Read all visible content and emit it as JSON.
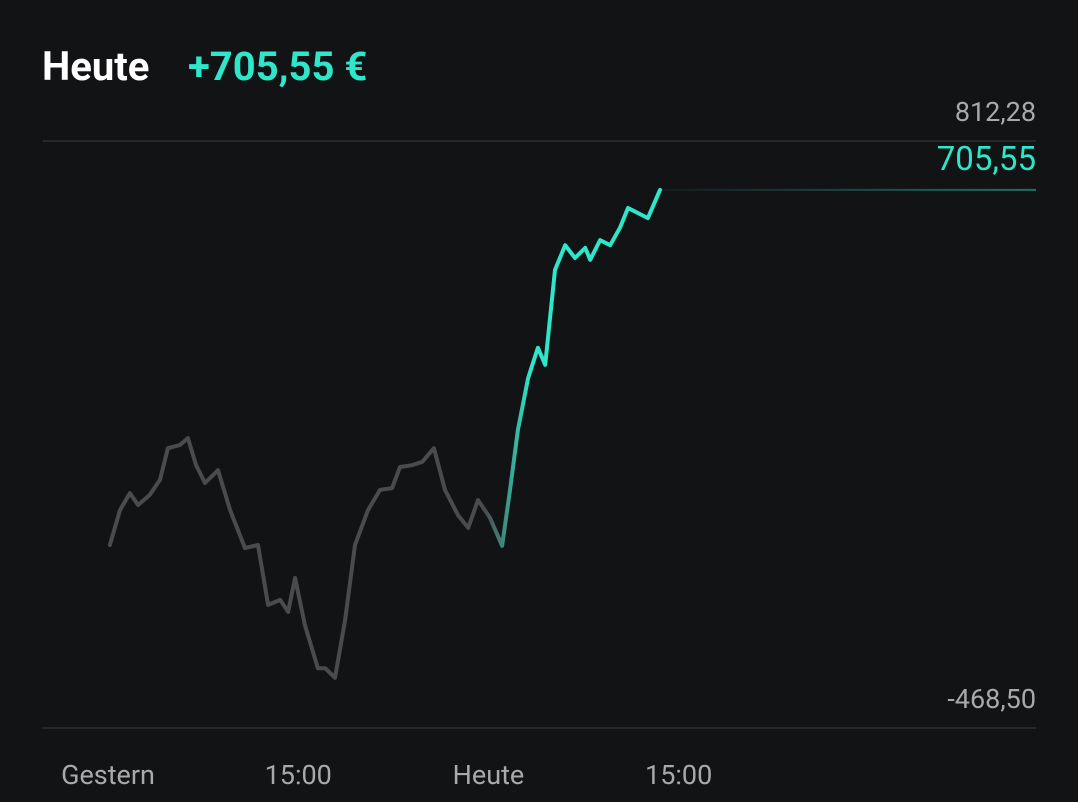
{
  "header": {
    "title": "Heute",
    "change": "+705,55 €"
  },
  "chart_data": {
    "type": "line",
    "xlim": [
      -2.05,
      29.27
    ],
    "xticks": [
      {
        "value": 0,
        "label": "Gestern"
      },
      {
        "value": 6,
        "label": "15:00"
      },
      {
        "value": 12,
        "label": "Heute"
      },
      {
        "value": 18,
        "label": "15:00"
      }
    ],
    "ylim": [
      -468.5,
      812.28
    ],
    "yticks": [
      {
        "value": 812.28,
        "label": "812,28"
      },
      {
        "value": -468.5,
        "label": "-468,50"
      }
    ],
    "grid": true,
    "current": {
      "value": 705.55,
      "label": "705,55"
    },
    "series": [
      {
        "color": "#2ee6c9",
        "past_color": "#4a4b4c",
        "x": [
          0.06,
          0.38,
          0.69,
          0.95,
          1.32,
          1.64,
          1.89,
          2.27,
          2.52,
          2.78,
          3.06,
          3.47,
          3.85,
          4.32,
          4.73,
          5.05,
          5.43,
          5.68,
          5.9,
          6.21,
          6.62,
          6.85,
          7.16,
          7.48,
          7.79,
          8.2,
          8.58,
          8.96,
          9.21,
          9.59,
          9.91,
          10.28,
          10.63,
          11.04,
          11.36,
          11.67,
          12.05,
          12.43,
          12.68,
          12.93,
          13.25,
          13.56,
          13.79,
          14.1,
          14.42,
          14.73,
          15.05,
          15.21,
          15.52,
          15.84,
          16.15,
          16.4,
          16.72,
          17.03,
          17.41
        ],
        "values": [
          -69,
          7,
          44,
          18,
          40,
          73,
          142,
          149,
          164,
          105,
          66,
          94,
          7,
          -76,
          -69,
          -200,
          -189,
          -215,
          -141,
          -244,
          -338,
          -338,
          -359,
          -233,
          -69,
          7,
          51,
          55,
          101,
          105,
          112,
          142,
          51,
          -4,
          -32,
          29,
          -10,
          -71,
          51,
          182,
          295,
          361,
          324,
          531,
          585,
          557,
          579,
          553,
          596,
          585,
          623,
          666,
          655,
          644,
          705.55
        ]
      }
    ]
  }
}
